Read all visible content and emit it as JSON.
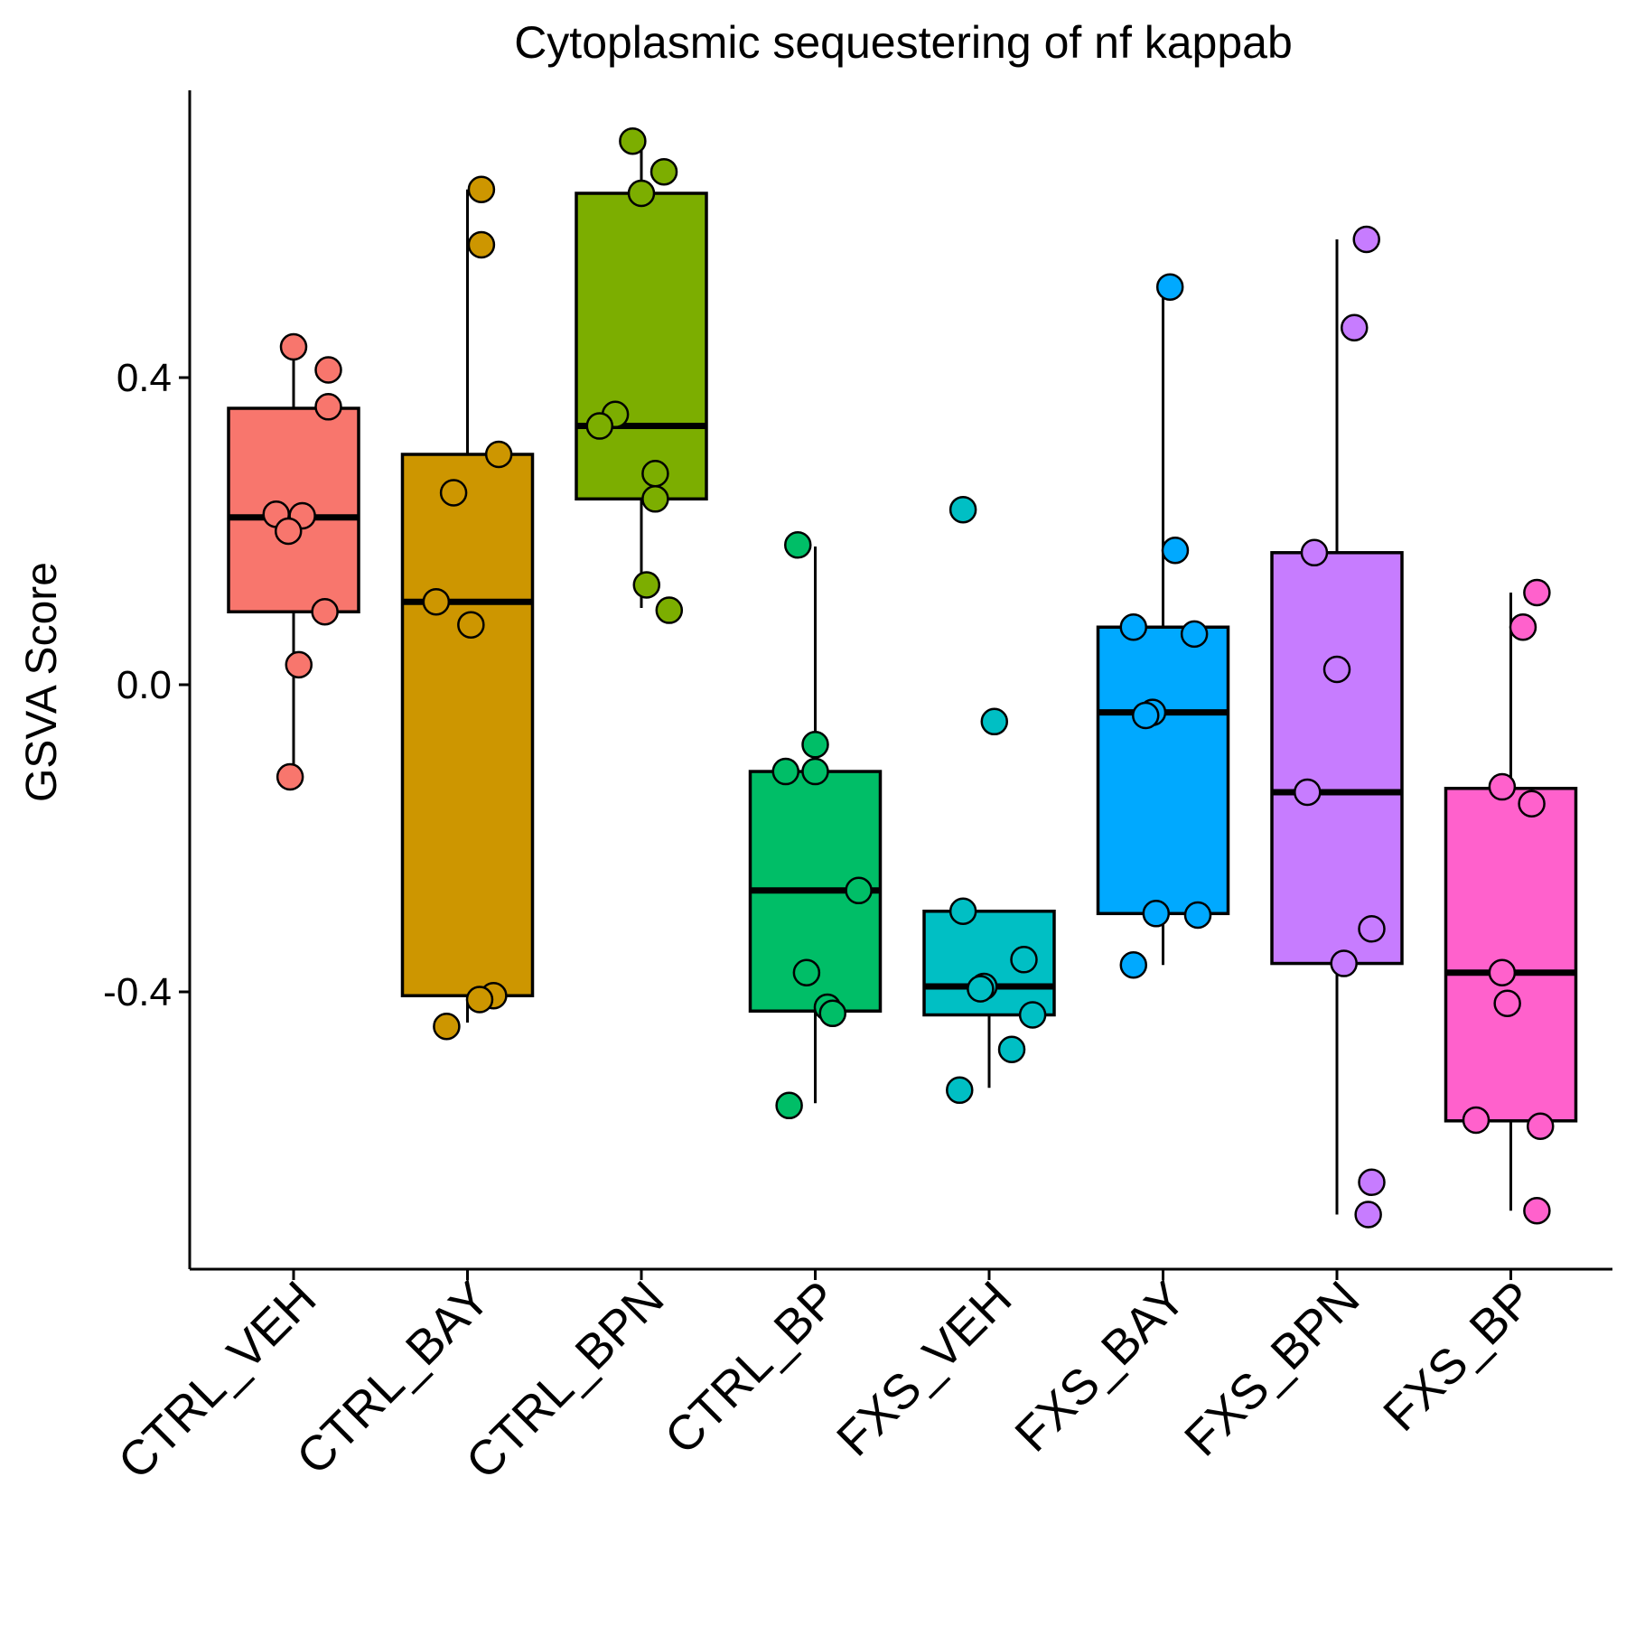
{
  "chart_data": {
    "type": "box",
    "title": "Cytoplasmic sequestering of nf kappab",
    "xlabel": "",
    "ylabel": "GSVA Score",
    "ylim": [
      -0.76,
      0.78
    ],
    "yticks": [
      -0.4,
      0.0,
      0.4
    ],
    "ytick_labels": [
      "-0.4",
      "0.0",
      "0.4"
    ],
    "grid": false,
    "legend": "none",
    "categories": [
      "CTRL_VEH",
      "CTRL_BAY",
      "CTRL_BPN",
      "CTRL_BP",
      "FXS_VEH",
      "FXS_BAY",
      "FXS_BPN",
      "FXS_BP"
    ],
    "colors": [
      "#F8766D",
      "#CD9600",
      "#7CAE00",
      "#00BE67",
      "#00BFC4",
      "#00A9FF",
      "#C77CFF",
      "#FF61CC"
    ],
    "groups": [
      {
        "name": "CTRL_VEH",
        "box": {
          "whisker_low": -0.12,
          "q1": 0.095,
          "median": 0.218,
          "q3": 0.36,
          "whisker_high": 0.44
        },
        "points": [
          {
            "offset": 0.0,
            "y": 0.44
          },
          {
            "offset": 0.2,
            "y": 0.41
          },
          {
            "offset": 0.2,
            "y": 0.362
          },
          {
            "offset": -0.1,
            "y": 0.222
          },
          {
            "offset": 0.05,
            "y": 0.22
          },
          {
            "offset": -0.03,
            "y": 0.2
          },
          {
            "offset": 0.18,
            "y": 0.095
          },
          {
            "offset": 0.03,
            "y": 0.026
          },
          {
            "offset": -0.02,
            "y": -0.12
          }
        ]
      },
      {
        "name": "CTRL_BAY",
        "box": {
          "whisker_low": -0.44,
          "q1": -0.405,
          "median": 0.108,
          "q3": 0.3,
          "whisker_high": 0.645
        },
        "points": [
          {
            "offset": 0.08,
            "y": 0.645
          },
          {
            "offset": 0.08,
            "y": 0.573
          },
          {
            "offset": 0.18,
            "y": 0.3
          },
          {
            "offset": -0.08,
            "y": 0.25
          },
          {
            "offset": -0.18,
            "y": 0.108
          },
          {
            "offset": 0.02,
            "y": 0.078
          },
          {
            "offset": 0.15,
            "y": -0.405
          },
          {
            "offset": 0.07,
            "y": -0.41
          },
          {
            "offset": -0.12,
            "y": -0.445
          }
        ]
      },
      {
        "name": "CTRL_BPN",
        "box": {
          "whisker_low": 0.1,
          "q1": 0.242,
          "median": 0.337,
          "q3": 0.64,
          "whisker_high": 0.708
        },
        "points": [
          {
            "offset": -0.05,
            "y": 0.708
          },
          {
            "offset": 0.13,
            "y": 0.668
          },
          {
            "offset": 0.0,
            "y": 0.64
          },
          {
            "offset": -0.15,
            "y": 0.352
          },
          {
            "offset": -0.24,
            "y": 0.337
          },
          {
            "offset": 0.08,
            "y": 0.275
          },
          {
            "offset": 0.08,
            "y": 0.242
          },
          {
            "offset": 0.03,
            "y": 0.13
          },
          {
            "offset": 0.16,
            "y": 0.097
          }
        ]
      },
      {
        "name": "CTRL_BP",
        "box": {
          "whisker_low": -0.545,
          "q1": -0.425,
          "median": -0.268,
          "q3": -0.113,
          "whisker_high": 0.18
        },
        "points": [
          {
            "offset": -0.1,
            "y": 0.182
          },
          {
            "offset": 0.0,
            "y": -0.078
          },
          {
            "offset": -0.17,
            "y": -0.113
          },
          {
            "offset": 0.0,
            "y": -0.113
          },
          {
            "offset": 0.25,
            "y": -0.268
          },
          {
            "offset": -0.05,
            "y": -0.375
          },
          {
            "offset": 0.07,
            "y": -0.42
          },
          {
            "offset": 0.1,
            "y": -0.428
          },
          {
            "offset": -0.15,
            "y": -0.548
          }
        ]
      },
      {
        "name": "FXS_VEH",
        "box": {
          "whisker_low": -0.525,
          "q1": -0.43,
          "median": -0.393,
          "q3": -0.295,
          "whisker_high": -0.295
        },
        "points": [
          {
            "offset": -0.15,
            "y": 0.228
          },
          {
            "offset": 0.03,
            "y": -0.048
          },
          {
            "offset": -0.15,
            "y": -0.295
          },
          {
            "offset": 0.2,
            "y": -0.358
          },
          {
            "offset": -0.03,
            "y": -0.393
          },
          {
            "offset": -0.05,
            "y": -0.396
          },
          {
            "offset": 0.25,
            "y": -0.43
          },
          {
            "offset": 0.13,
            "y": -0.475
          },
          {
            "offset": -0.17,
            "y": -0.528
          }
        ]
      },
      {
        "name": "FXS_BAY",
        "box": {
          "whisker_low": -0.365,
          "q1": -0.298,
          "median": -0.036,
          "q3": 0.075,
          "whisker_high": 0.515
        },
        "points": [
          {
            "offset": 0.04,
            "y": 0.518
          },
          {
            "offset": 0.07,
            "y": 0.175
          },
          {
            "offset": -0.17,
            "y": 0.075
          },
          {
            "offset": 0.18,
            "y": 0.066
          },
          {
            "offset": -0.06,
            "y": -0.036
          },
          {
            "offset": -0.1,
            "y": -0.04
          },
          {
            "offset": -0.04,
            "y": -0.298
          },
          {
            "offset": 0.2,
            "y": -0.3
          },
          {
            "offset": -0.17,
            "y": -0.365
          }
        ]
      },
      {
        "name": "FXS_BPN",
        "box": {
          "whisker_low": -0.69,
          "q1": -0.363,
          "median": -0.14,
          "q3": 0.172,
          "whisker_high": 0.58
        },
        "points": [
          {
            "offset": 0.17,
            "y": 0.58
          },
          {
            "offset": 0.1,
            "y": 0.465
          },
          {
            "offset": -0.13,
            "y": 0.172
          },
          {
            "offset": 0.0,
            "y": 0.02
          },
          {
            "offset": -0.17,
            "y": -0.14
          },
          {
            "offset": 0.2,
            "y": -0.318
          },
          {
            "offset": 0.04,
            "y": -0.363
          },
          {
            "offset": 0.2,
            "y": -0.648
          },
          {
            "offset": 0.18,
            "y": -0.69
          }
        ]
      },
      {
        "name": "FXS_BP",
        "box": {
          "whisker_low": -0.685,
          "q1": -0.568,
          "median": -0.375,
          "q3": -0.135,
          "whisker_high": 0.12
        },
        "points": [
          {
            "offset": 0.15,
            "y": 0.12
          },
          {
            "offset": 0.07,
            "y": 0.075
          },
          {
            "offset": -0.05,
            "y": -0.133
          },
          {
            "offset": 0.12,
            "y": -0.155
          },
          {
            "offset": -0.05,
            "y": -0.375
          },
          {
            "offset": -0.02,
            "y": -0.415
          },
          {
            "offset": -0.2,
            "y": -0.567
          },
          {
            "offset": 0.17,
            "y": -0.575
          },
          {
            "offset": 0.15,
            "y": -0.685
          }
        ]
      }
    ]
  }
}
